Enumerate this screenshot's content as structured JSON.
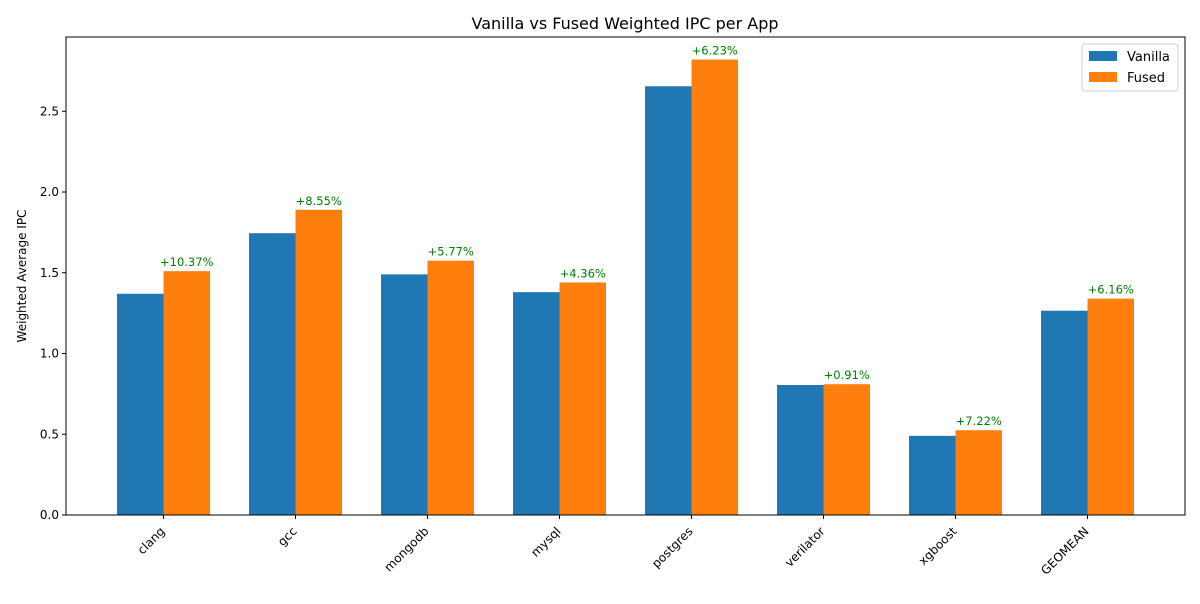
{
  "chart_data": {
    "type": "bar",
    "title": "Vanilla vs Fused Weighted IPC per App",
    "xlabel": "",
    "ylabel": "Weighted Average IPC",
    "categories": [
      "clang",
      "gcc",
      "mongodb",
      "mysql",
      "postgres",
      "verilator",
      "xgboost",
      "GEOMEAN"
    ],
    "series": [
      {
        "name": "Vanilla",
        "color": "#1f77b4",
        "values": [
          1.37,
          1.745,
          1.49,
          1.38,
          2.655,
          0.805,
          0.49,
          1.265
        ]
      },
      {
        "name": "Fused",
        "color": "#ff7f0e",
        "values": [
          1.51,
          1.89,
          1.575,
          1.44,
          2.82,
          0.81,
          0.525,
          1.34
        ]
      }
    ],
    "annotations": [
      "+10.37%",
      "+8.55%",
      "+5.77%",
      "+4.36%",
      "+6.23%",
      "+0.91%",
      "+7.22%",
      "+6.16%"
    ],
    "annotation_color": "#008000",
    "ylim": [
      0,
      2.96
    ],
    "yticks": [
      0.0,
      0.5,
      1.0,
      1.5,
      2.0,
      2.5
    ],
    "ytick_labels": [
      "0.0",
      "0.5",
      "1.0",
      "1.5",
      "2.0",
      "2.5"
    ],
    "grid": false,
    "legend_position": "top-right"
  }
}
